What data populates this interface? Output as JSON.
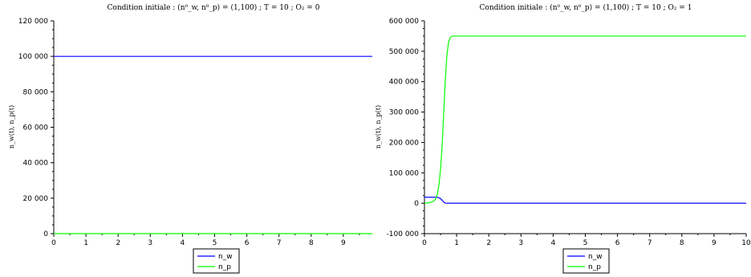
{
  "chart_data": [
    {
      "type": "line",
      "title": "Condition initiale  :  (n⁰_w, n⁰_p) = (1,100)  ;  T = 10  ;  O₂ = 0",
      "xlabel": "",
      "ylabel": "n_w(t), n_p(t)",
      "xlim": [
        0,
        9.9
      ],
      "ylim": [
        0,
        120000
      ],
      "xticks": [
        "0",
        "1",
        "2",
        "3",
        "4",
        "5",
        "6",
        "7",
        "8",
        "9"
      ],
      "yticks": [
        "0",
        "20 000",
        "40 000",
        "60 000",
        "80 000",
        "100 000",
        "120 000"
      ],
      "grid": false,
      "legend_position": "bottom-center",
      "series": [
        {
          "name": "n_w",
          "color": "#0000ff",
          "x": [
            0,
            9.9
          ],
          "y": [
            100000,
            100000
          ]
        },
        {
          "name": "n_p",
          "color": "#00ff00",
          "x": [
            0,
            9.9
          ],
          "y": [
            0,
            0
          ]
        }
      ]
    },
    {
      "type": "line",
      "title": "Condition initiale  :  (n⁰_w, n⁰_p) = (1,100)  ;  T = 10  ;  O₂ = 1",
      "xlabel": "",
      "ylabel": "n_w(t), n_p(t)",
      "xlim": [
        0,
        10
      ],
      "ylim": [
        -100000,
        600000
      ],
      "xticks": [
        "0",
        "1",
        "2",
        "3",
        "4",
        "5",
        "6",
        "7",
        "8",
        "9",
        "10"
      ],
      "yticks": [
        "-100 000",
        "0",
        "100 000",
        "200 000",
        "300 000",
        "400 000",
        "500 000",
        "600 000"
      ],
      "grid": false,
      "legend_position": "bottom-center",
      "series": [
        {
          "name": "n_w",
          "color": "#0000ff",
          "x": [
            0,
            0.1,
            0.2,
            0.3,
            0.35,
            0.4,
            0.45,
            0.5,
            0.55,
            0.6,
            0.65,
            0.7,
            1,
            2,
            4,
            6,
            8,
            10
          ],
          "y": [
            20000,
            20000,
            20000,
            20000,
            20000,
            19500,
            18000,
            15000,
            10000,
            4000,
            500,
            0,
            0,
            0,
            0,
            0,
            0,
            0
          ]
        },
        {
          "name": "n_p",
          "color": "#00ff00",
          "x": [
            0,
            0.1,
            0.2,
            0.3,
            0.35,
            0.4,
            0.45,
            0.5,
            0.55,
            0.6,
            0.65,
            0.7,
            0.75,
            0.8,
            0.85,
            0.9,
            1,
            2,
            4,
            6,
            8,
            10
          ],
          "y": [
            0,
            1000,
            3000,
            8000,
            15000,
            30000,
            60000,
            110000,
            190000,
            300000,
            410000,
            490000,
            530000,
            545000,
            549000,
            550000,
            550000,
            550000,
            550000,
            550000,
            550000,
            550000
          ]
        }
      ]
    }
  ]
}
